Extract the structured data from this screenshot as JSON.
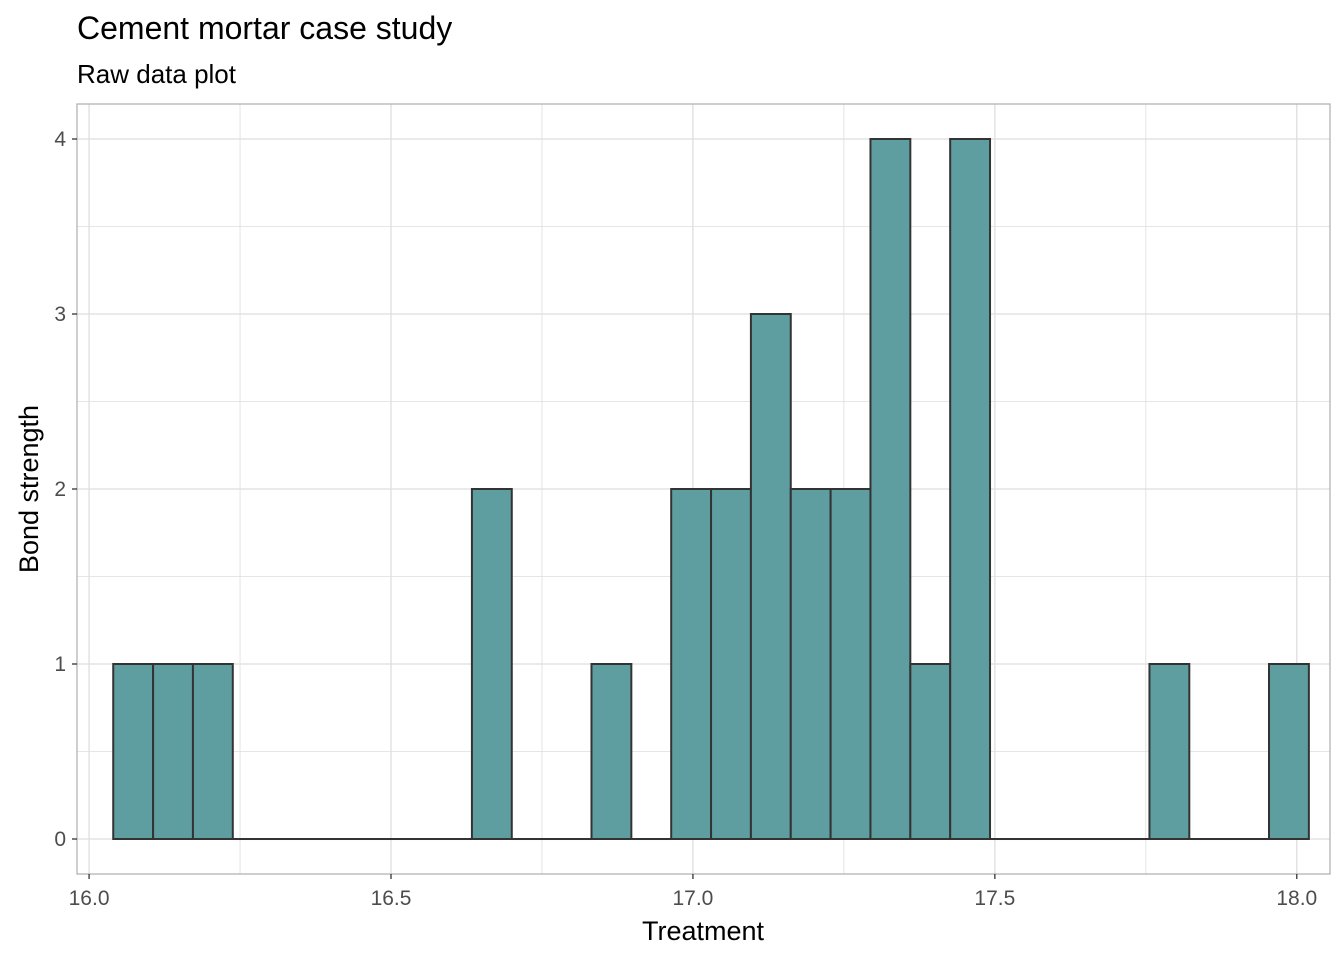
{
  "chart_data": {
    "type": "bar",
    "title": "Cement mortar case study",
    "subtitle": "Raw data plot",
    "xlabel": "Treatment",
    "ylabel": "Bond strength",
    "xlim": [
      15.98,
      18.055
    ],
    "ylim": [
      -0.2,
      4.2
    ],
    "x_ticks": [
      "16.0",
      "16.5",
      "17.0",
      "17.5",
      "18.0"
    ],
    "y_ticks": [
      "0",
      "1",
      "2",
      "3",
      "4"
    ],
    "grid": true,
    "bins": [
      {
        "start": 16.04,
        "end": 16.106,
        "count": 1
      },
      {
        "start": 16.106,
        "end": 16.172,
        "count": 1
      },
      {
        "start": 16.172,
        "end": 16.238,
        "count": 1
      },
      {
        "start": 16.238,
        "end": 16.304,
        "count": 0
      },
      {
        "start": 16.304,
        "end": 16.37,
        "count": 0
      },
      {
        "start": 16.37,
        "end": 16.436,
        "count": 0
      },
      {
        "start": 16.436,
        "end": 16.502,
        "count": 0
      },
      {
        "start": 16.502,
        "end": 16.568,
        "count": 0
      },
      {
        "start": 16.568,
        "end": 16.634,
        "count": 0
      },
      {
        "start": 16.634,
        "end": 16.7,
        "count": 2
      },
      {
        "start": 16.7,
        "end": 16.766,
        "count": 0
      },
      {
        "start": 16.766,
        "end": 16.832,
        "count": 0
      },
      {
        "start": 16.832,
        "end": 16.898,
        "count": 1
      },
      {
        "start": 16.898,
        "end": 16.964,
        "count": 0
      },
      {
        "start": 16.964,
        "end": 17.03,
        "count": 2
      },
      {
        "start": 17.03,
        "end": 17.096,
        "count": 2
      },
      {
        "start": 17.096,
        "end": 17.162,
        "count": 3
      },
      {
        "start": 17.162,
        "end": 17.228,
        "count": 2
      },
      {
        "start": 17.228,
        "end": 17.294,
        "count": 2
      },
      {
        "start": 17.294,
        "end": 17.36,
        "count": 4
      },
      {
        "start": 17.36,
        "end": 17.426,
        "count": 1
      },
      {
        "start": 17.426,
        "end": 17.492,
        "count": 4
      },
      {
        "start": 17.492,
        "end": 17.558,
        "count": 0
      },
      {
        "start": 17.558,
        "end": 17.624,
        "count": 0
      },
      {
        "start": 17.624,
        "end": 17.69,
        "count": 0
      },
      {
        "start": 17.69,
        "end": 17.756,
        "count": 0
      },
      {
        "start": 17.756,
        "end": 17.822,
        "count": 1
      },
      {
        "start": 17.822,
        "end": 17.888,
        "count": 0
      },
      {
        "start": 17.888,
        "end": 17.954,
        "count": 0
      },
      {
        "start": 17.954,
        "end": 18.02,
        "count": 1
      }
    ],
    "colors": {
      "bar_fill": "#5f9ea0",
      "bar_stroke": "#333333",
      "grid": "#dedede",
      "panel_border": "#b3b3b3",
      "tick_text": "#4d4d4d"
    }
  }
}
